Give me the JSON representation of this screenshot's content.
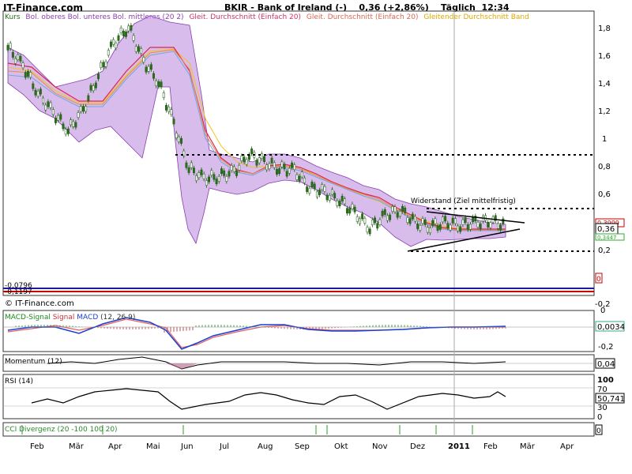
{
  "header": {
    "brand": "IT-Finance.com",
    "title": "BKIR - Bank of Ireland (-)",
    "quote": "0,36 (+2,86%)",
    "interval": "Täglich",
    "time": "12:34"
  },
  "legend": {
    "kurs": "Kurs",
    "bollinger": "Bol. oberes Bol. unteres Bol. mittleres (20 2)",
    "sma1": "Gleit. Durchschnitt (Einfach 20)",
    "sma2": "Gleit. Durchschnitt (Einfach 20)",
    "band": "Gleitender Durchschnitt Band",
    "colors": {
      "kurs": "#2a6f1a",
      "bollinger": "#8a3fb0",
      "sma1": "#cc3366",
      "sma2": "#dd6655",
      "band": "#f3c31e"
    }
  },
  "footer_brand": "© IT-Finance.com",
  "annotations": {
    "widerstand": "Widerstand (Ziel mittelfristig)"
  },
  "price_axis": {
    "ticks": [
      "1,8",
      "1,6",
      "1,4",
      "1,2",
      "1",
      "0,8",
      "0,6",
      "0,4",
      "0,2",
      "-0,2"
    ]
  },
  "price_boxes": {
    "last": "0,36",
    "upper": "0,3999",
    "lower": "0,3447",
    "left_top": "-0,0796",
    "left_bottom": "-0,1197",
    "right_zero": "0"
  },
  "macd": {
    "label_signal": "MACD-Signal",
    "label_signal2": "Signal",
    "label_macd": "MACD",
    "params": "(12, 26 9)",
    "value": "0,0034",
    "ticks": [
      "0",
      "-0,2"
    ]
  },
  "momentum": {
    "label": "Momentum (12)",
    "value": "0,04"
  },
  "rsi": {
    "label": "RSI (14)",
    "value": "50,741",
    "ticks": [
      "100",
      "70",
      "30",
      "0"
    ]
  },
  "cci": {
    "label": "CCI Divergenz (20 -100 100 20)",
    "value": "0"
  },
  "x_axis": {
    "months": [
      "Feb",
      "Mär",
      "Apr",
      "Mai",
      "Jun",
      "Jul",
      "Aug",
      "Sep",
      "Okt",
      "Nov",
      "Dez",
      "2011",
      "Feb",
      "Mär",
      "Apr"
    ]
  },
  "chart_data": {
    "type": "line",
    "title": "BKIR - Bank of Ireland (-)",
    "xlabel": "",
    "ylabel": "",
    "ylim": [
      -0.2,
      1.9
    ],
    "grid": false,
    "series": [
      {
        "name": "Kurs",
        "values": [
          1.65,
          1.52,
          1.32,
          1.18,
          1.05,
          1.2,
          1.45,
          1.68,
          1.8,
          1.55,
          1.4,
          1.1,
          0.78,
          0.7,
          0.72,
          0.75,
          0.88,
          0.82,
          0.78,
          0.76,
          0.64,
          0.6,
          0.55,
          0.45,
          0.35,
          0.43,
          0.48,
          0.38,
          0.36,
          0.38,
          0.37,
          0.38,
          0.4,
          0.36
        ]
      },
      {
        "name": "Gleit. Durchschnitt (Einfach 20)",
        "values": [
          1.5,
          1.45,
          1.35,
          1.25,
          1.15,
          1.18,
          1.3,
          1.48,
          1.65,
          1.66,
          1.52,
          1.3,
          1.05,
          0.85,
          0.76,
          0.74,
          0.8,
          0.83,
          0.8,
          0.77,
          0.71,
          0.65,
          0.59,
          0.52,
          0.43,
          0.42,
          0.44,
          0.41,
          0.38,
          0.37,
          0.37,
          0.37,
          0.38,
          0.37
        ]
      }
    ],
    "annotations": [
      "Widerstand (Ziel mittelfristig)"
    ],
    "legend": "top-left"
  }
}
